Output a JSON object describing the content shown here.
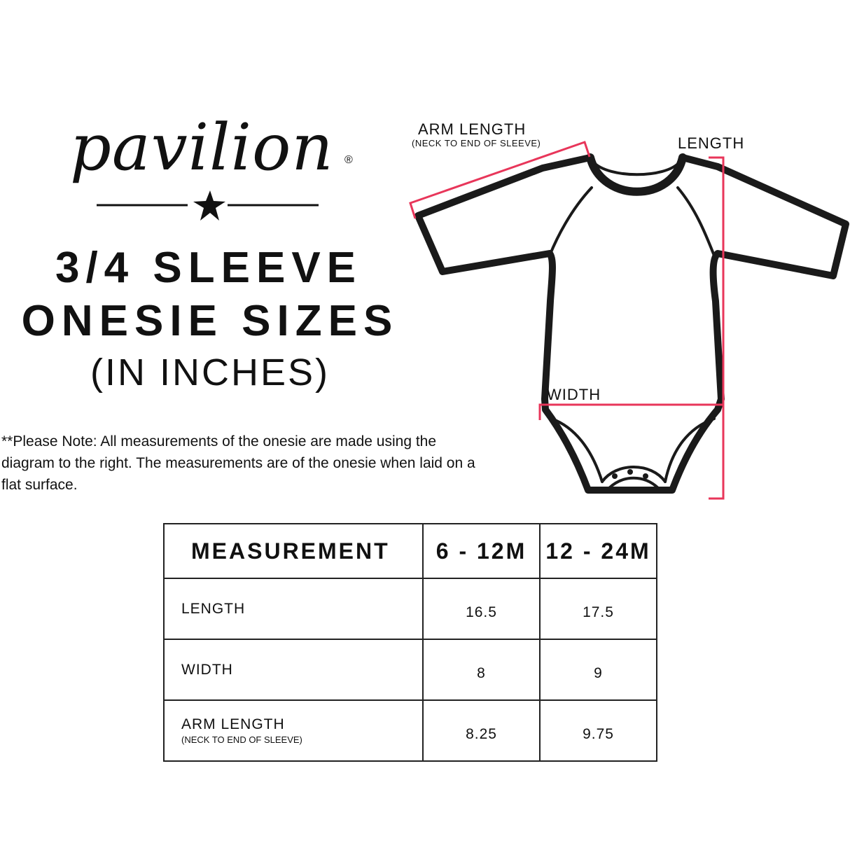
{
  "logo": {
    "text": "pavilion",
    "registered": "®"
  },
  "title": {
    "line1": "3/4 SLEEVE",
    "line2": "ONESIE SIZES",
    "line3": "(IN INCHES)"
  },
  "note": "**Please Note:  All measurements of the onesie are made using the diagram to the right.  The measurements are of the onesie when laid on a flat surface.",
  "diagram": {
    "arm_length_label": "ARM LENGTH",
    "arm_length_sub": "(NECK TO END OF SLEEVE)",
    "length_label": "LENGTH",
    "width_label": "WIDTH",
    "measure_color": "#e8365a"
  },
  "table": {
    "headers": [
      "MEASUREMENT",
      "6 - 12M",
      "12 - 24M"
    ],
    "rows": [
      {
        "label": "LENGTH",
        "sub": "",
        "values": [
          "16.5",
          "17.5"
        ]
      },
      {
        "label": "WIDTH",
        "sub": "",
        "values": [
          "8",
          "9"
        ]
      },
      {
        "label": "ARM LENGTH",
        "sub": "(NECK TO END OF SLEEVE)",
        "values": [
          "8.25",
          "9.75"
        ]
      }
    ]
  }
}
